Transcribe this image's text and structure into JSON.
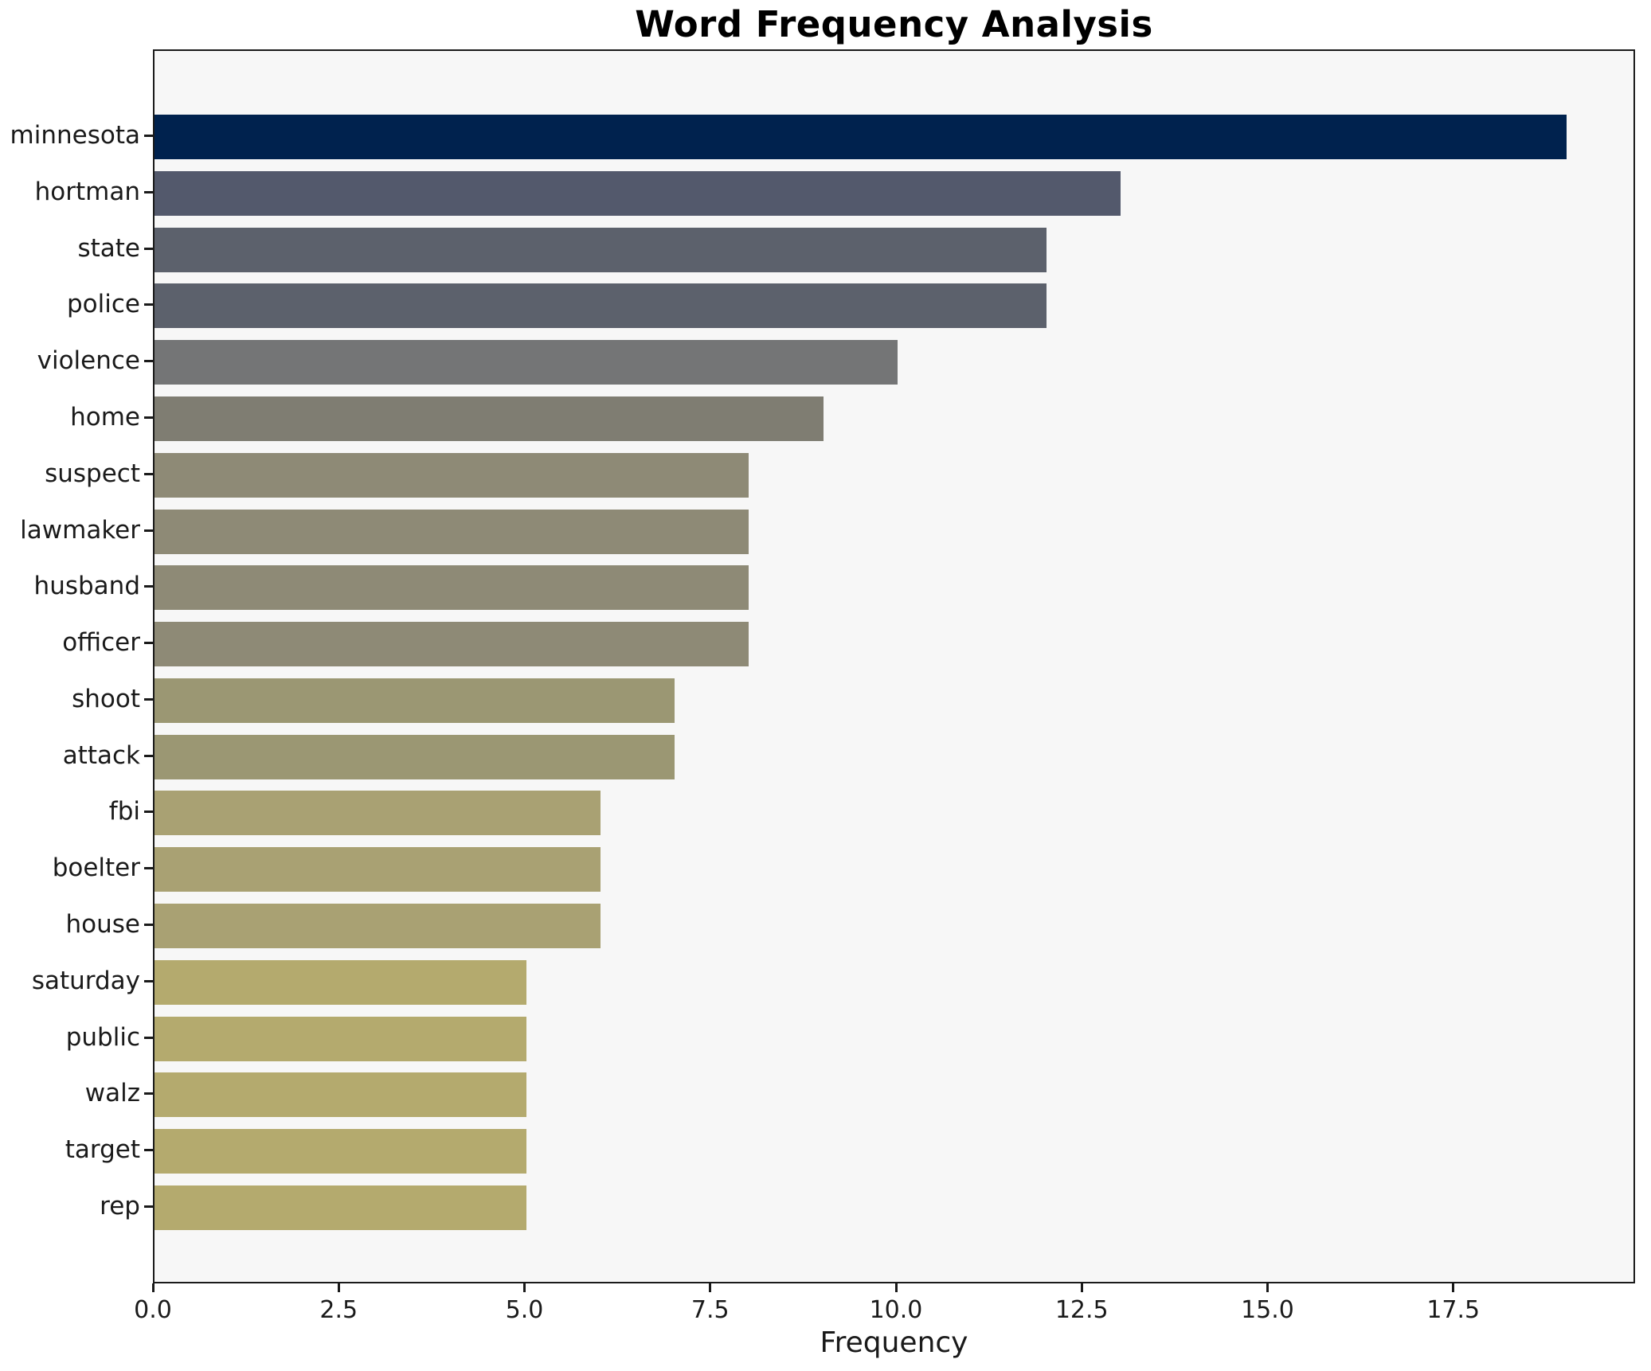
{
  "title": "Word Frequency Analysis",
  "chart_data": {
    "type": "bar",
    "orientation": "horizontal",
    "title": "Word Frequency Analysis",
    "xlabel": "Frequency",
    "ylabel": "",
    "categories": [
      "minnesota",
      "hortman",
      "state",
      "police",
      "violence",
      "home",
      "suspect",
      "lawmaker",
      "husband",
      "officer",
      "shoot",
      "attack",
      "fbi",
      "boelter",
      "house",
      "saturday",
      "public",
      "walz",
      "target",
      "rep"
    ],
    "values": [
      19,
      13,
      12,
      12,
      10,
      9,
      8,
      8,
      8,
      8,
      7,
      7,
      6,
      6,
      6,
      5,
      5,
      5,
      5,
      5
    ],
    "bar_colors": [
      "#00224e",
      "#53596c",
      "#5c616c",
      "#5c616c",
      "#747576",
      "#7f7d72",
      "#8e8a76",
      "#8e8a76",
      "#8e8a76",
      "#8e8a76",
      "#9b9773",
      "#9b9773",
      "#a9a173",
      "#a9a173",
      "#a9a173",
      "#b4aa6e",
      "#b4aa6e",
      "#b4aa6e",
      "#b4aa6e",
      "#b4aa6e"
    ],
    "xlim": [
      0,
      19.95
    ],
    "xticks": [
      0,
      2.5,
      5,
      7.5,
      10,
      12.5,
      15,
      17.5
    ],
    "xtick_labels": [
      "0.0",
      "2.5",
      "5.0",
      "7.5",
      "10.0",
      "12.5",
      "15.0",
      "17.5"
    ],
    "grid": false,
    "legend_position": "none",
    "plot_background": "#f7f7f7",
    "figure_background": "#ffffff",
    "spine_color": "#1a1a1a",
    "colormap": "cividis (normalized by frequency, high = dark navy, low = tan)"
  }
}
